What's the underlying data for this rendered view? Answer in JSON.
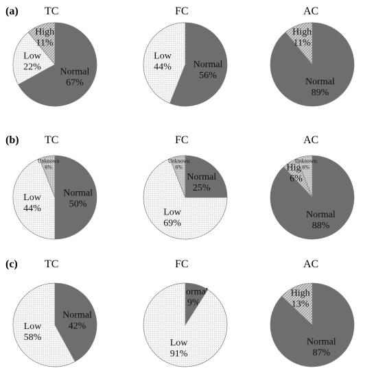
{
  "figure": {
    "rows": [
      {
        "label": "(a)"
      },
      {
        "label": "(b)"
      },
      {
        "label": "(c)"
      }
    ],
    "columns": [
      {
        "title": "TC"
      },
      {
        "title": "FC"
      },
      {
        "title": "AC"
      }
    ]
  },
  "colors": {
    "Normal": "#6e6e6e",
    "Low": "#f2f2f2",
    "High": "#c4c4c4",
    "Unknown": "#b5b5b5",
    "outline": "#7a7a7a"
  },
  "chart_data": [
    {
      "type": "pie",
      "row": "(a)",
      "title": "TC",
      "slices": [
        {
          "name": "Normal",
          "value": 67,
          "label": "67%"
        },
        {
          "name": "Low",
          "value": 22,
          "label": "22%"
        },
        {
          "name": "High",
          "value": 11,
          "label": "11%"
        }
      ]
    },
    {
      "type": "pie",
      "row": "(a)",
      "title": "FC",
      "slices": [
        {
          "name": "Normal",
          "value": 56,
          "label": "56%"
        },
        {
          "name": "Low",
          "value": 44,
          "label": "44%"
        }
      ]
    },
    {
      "type": "pie",
      "row": "(a)",
      "title": "AC",
      "slices": [
        {
          "name": "Normal",
          "value": 89,
          "label": "89%"
        },
        {
          "name": "High",
          "value": 11,
          "label": "11%"
        }
      ]
    },
    {
      "type": "pie",
      "row": "(b)",
      "title": "TC",
      "slices": [
        {
          "name": "Normal",
          "value": 50,
          "label": "50%"
        },
        {
          "name": "Low",
          "value": 44,
          "label": "44%"
        },
        {
          "name": "Unknown",
          "value": 6,
          "label": "6%"
        }
      ]
    },
    {
      "type": "pie",
      "row": "(b)",
      "title": "FC",
      "slices": [
        {
          "name": "Normal",
          "value": 25,
          "label": "25%"
        },
        {
          "name": "Low",
          "value": 69,
          "label": "69%"
        },
        {
          "name": "Unknown",
          "value": 6,
          "label": "6%"
        }
      ]
    },
    {
      "type": "pie",
      "row": "(b)",
      "title": "AC",
      "slices": [
        {
          "name": "Normal",
          "value": 88,
          "label": "88%"
        },
        {
          "name": "High",
          "value": 6,
          "label": "6%"
        },
        {
          "name": "Unknown",
          "value": 6,
          "label": "6%"
        }
      ]
    },
    {
      "type": "pie",
      "row": "(c)",
      "title": "TC",
      "slices": [
        {
          "name": "Normal",
          "value": 42,
          "label": "42%"
        },
        {
          "name": "Low",
          "value": 58,
          "label": "58%"
        }
      ]
    },
    {
      "type": "pie",
      "row": "(c)",
      "title": "FC",
      "slices": [
        {
          "name": "Normal",
          "value": 9,
          "label": "9%"
        },
        {
          "name": "Low",
          "value": 91,
          "label": "91%"
        }
      ]
    },
    {
      "type": "pie",
      "row": "(c)",
      "title": "AC",
      "slices": [
        {
          "name": "Normal",
          "value": 87,
          "label": "87%"
        },
        {
          "name": "High",
          "value": 13,
          "label": "13%"
        }
      ]
    }
  ]
}
